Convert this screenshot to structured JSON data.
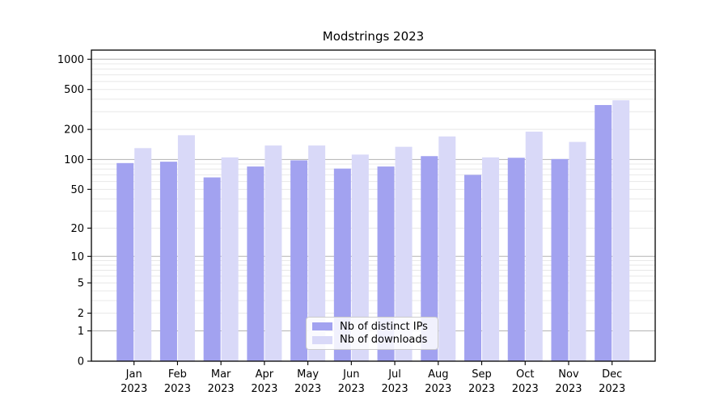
{
  "chart_data": {
    "type": "bar",
    "title": "Modstrings 2023",
    "xlabel": "",
    "ylabel": "",
    "x_categories": [
      {
        "month": "Jan",
        "year": "2023"
      },
      {
        "month": "Feb",
        "year": "2023"
      },
      {
        "month": "Mar",
        "year": "2023"
      },
      {
        "month": "Apr",
        "year": "2023"
      },
      {
        "month": "May",
        "year": "2023"
      },
      {
        "month": "Jun",
        "year": "2023"
      },
      {
        "month": "Jul",
        "year": "2023"
      },
      {
        "month": "Aug",
        "year": "2023"
      },
      {
        "month": "Sep",
        "year": "2023"
      },
      {
        "month": "Oct",
        "year": "2023"
      },
      {
        "month": "Nov",
        "year": "2023"
      },
      {
        "month": "Dec",
        "year": "2023"
      }
    ],
    "series": [
      {
        "name": "Nb of distinct IPs",
        "color": "#a2a2f0",
        "values": [
          92,
          95,
          66,
          85,
          98,
          81,
          85,
          108,
          70,
          104,
          101,
          350
        ]
      },
      {
        "name": "Nb of downloads",
        "color": "#d9d9f8",
        "values": [
          130,
          175,
          105,
          138,
          138,
          112,
          134,
          170,
          105,
          190,
          150,
          390
        ]
      }
    ],
    "y_axis": {
      "scale": "symlog",
      "tick_labels": [
        0,
        1,
        2,
        5,
        10,
        20,
        50,
        100,
        200,
        500,
        1000
      ],
      "minor_grid_bases": [
        1,
        10,
        100
      ],
      "minor_grid_mantissas": [
        2,
        3,
        4,
        5,
        6,
        7,
        8,
        9
      ],
      "ylim": [
        0,
        1000
      ]
    },
    "legend": {
      "position": "lower-center"
    },
    "grid": {
      "major_color": "#b3b3b3",
      "minor_color": "#e8e8e8"
    },
    "colors": {
      "spine": "#000000",
      "background": "#ffffff",
      "text": "#000000"
    }
  }
}
